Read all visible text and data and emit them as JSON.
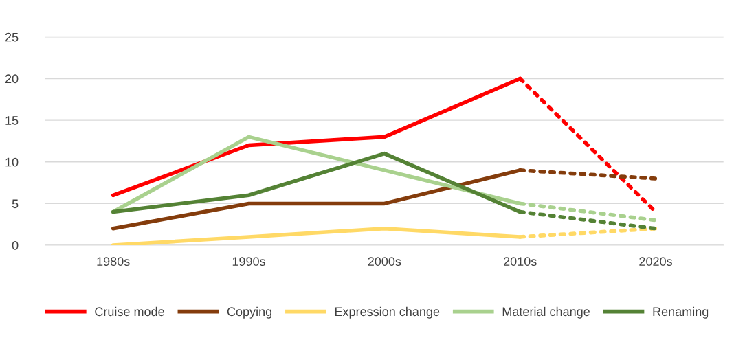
{
  "chart_data": {
    "type": "line",
    "categories": [
      "1980s",
      "1990s",
      "2000s",
      "2010s",
      "2020s"
    ],
    "ylim": [
      0,
      25
    ],
    "yticks": [
      0,
      5,
      10,
      15,
      20,
      25
    ],
    "grid": "y",
    "legend": "bottom",
    "marker": "none",
    "series": [
      {
        "name": "Cruise mode",
        "color": "#ff0000",
        "values": [
          6,
          12,
          13,
          20,
          null
        ]
      },
      {
        "name": "Copying",
        "color": "#843c0c",
        "values": [
          2,
          5,
          5,
          9,
          null
        ]
      },
      {
        "name": "Expression change",
        "color": "#ffd966",
        "values": [
          0,
          1,
          2,
          1,
          null
        ]
      },
      {
        "name": "Material change",
        "color": "#a9d18e",
        "values": [
          4,
          13,
          9,
          5,
          null
        ]
      },
      {
        "name": "Renaming",
        "color": "#548235",
        "values": [
          4,
          6,
          11,
          4,
          null
        ]
      },
      {
        "color": "#ff0000",
        "line_style": "dotted",
        "values": [
          null,
          null,
          null,
          20,
          4
        ]
      },
      {
        "color": "#843c0c",
        "line_style": "dotted",
        "values": [
          null,
          null,
          null,
          9,
          8
        ]
      },
      {
        "color": "#ffd966",
        "line_style": "dotted",
        "values": [
          null,
          null,
          null,
          1,
          2
        ]
      },
      {
        "color": "#a9d18e",
        "line_style": "dotted",
        "values": [
          null,
          null,
          null,
          5,
          3
        ]
      },
      {
        "color": "#548235",
        "line_style": "dotted",
        "values": [
          null,
          null,
          null,
          4,
          2
        ]
      }
    ]
  }
}
